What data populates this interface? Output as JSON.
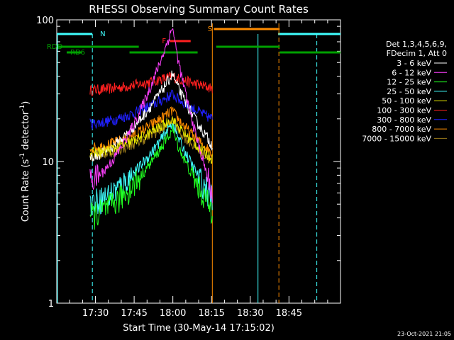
{
  "chart_data": {
    "type": "line",
    "title": "RHESSI Observing Summary Count Rates",
    "xlabel": "Start Time (30-May-14 17:15:02)",
    "ylabel_main": "Count Rate (s",
    "ylabel_exp1": "-1",
    "ylabel_mid": " detector",
    "ylabel_exp2": "-1",
    "ylabel_end": ")",
    "y_log": true,
    "ylim": [
      1,
      100
    ],
    "xlim_minutes": [
      17.25,
      19.083
    ],
    "xticks": [
      {
        "m": 17.5,
        "label": "17:30"
      },
      {
        "m": 17.75,
        "label": "17:45"
      },
      {
        "m": 18.0,
        "label": "18:00"
      },
      {
        "m": 18.25,
        "label": "18:15"
      },
      {
        "m": 18.5,
        "label": "18:30"
      },
      {
        "m": 18.75,
        "label": "18:45"
      }
    ],
    "yticks": [
      {
        "v": 1,
        "label": "1"
      },
      {
        "v": 10,
        "label": "10"
      },
      {
        "v": 100,
        "label": "100"
      }
    ],
    "legend_header": [
      "Det 1,3,4,5,6,9,",
      "FDecim 1, Att 0"
    ],
    "series": [
      {
        "name": "3 - 6 keV",
        "color": "#ffffff",
        "start": 10.8,
        "peak": 42,
        "end": 13
      },
      {
        "name": "6 - 12 keV",
        "color": "#ff40ff",
        "start": 7.5,
        "peak": 90,
        "end": 6
      },
      {
        "name": "12 - 25 keV",
        "color": "#20ff20",
        "start": 4.2,
        "peak": 17,
        "end": 4.5
      },
      {
        "name": "25 - 50 keV",
        "color": "#40ffff",
        "start": 5.2,
        "peak": 19,
        "end": 5.5
      },
      {
        "name": "50 - 100 keV",
        "color": "#e8e800",
        "start": 11.5,
        "peak": 20,
        "end": 10.5
      },
      {
        "name": "100 - 300 keV",
        "color": "#ff2020",
        "start": 32,
        "peak": 40,
        "end": 33
      },
      {
        "name": "300 - 800 keV",
        "color": "#2020ff",
        "start": 18.5,
        "peak": 30,
        "end": 20
      },
      {
        "name": "800 - 7000 keV",
        "color": "#ff8c00",
        "start": 12.5,
        "peak": 23,
        "end": 11.5
      },
      {
        "name": "7000 - 15000 keV",
        "color": "#9a7a1a",
        "start": 11,
        "peak": 19,
        "end": 10
      }
    ],
    "flags": {
      "saa_label": "N",
      "flare_label": "F",
      "sunrise_label": "S",
      "rd_label1": "RDD",
      "rd_label2": "RD6"
    },
    "footer_date": "23-Oct-2021 21:05"
  }
}
